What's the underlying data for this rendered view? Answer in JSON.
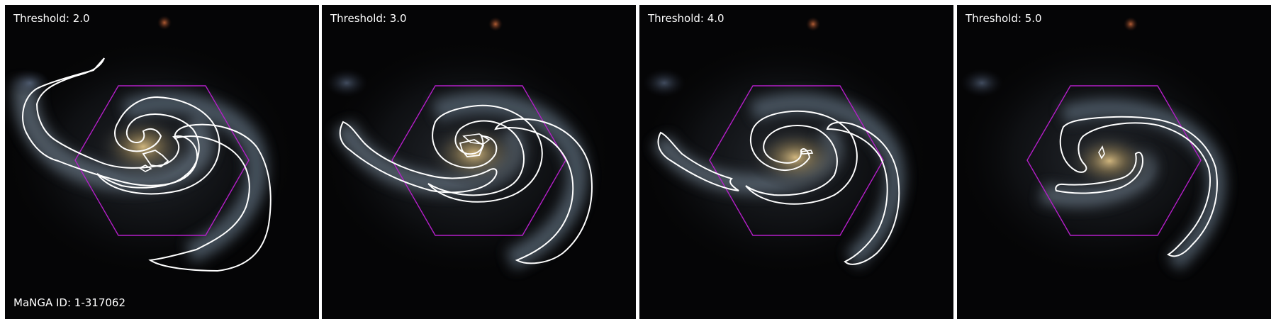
{
  "panels": [
    {
      "name": "panel-1",
      "threshold_label": "Threshold: 2.0",
      "threshold": 2.0
    },
    {
      "name": "panel-2",
      "threshold_label": "Threshold: 3.0",
      "threshold": 3.0
    },
    {
      "name": "panel-3",
      "threshold_label": "Threshold: 4.0",
      "threshold": 4.0
    },
    {
      "name": "panel-4",
      "threshold_label": "Threshold: 5.0",
      "threshold": 5.0
    }
  ],
  "galaxy_id_label": "MaNGA ID: 1-317062",
  "colors": {
    "background": "#050506",
    "contour": "#ffffff",
    "ifu_hexagon": "#b41ec8",
    "galaxy_core": "#cdb27a",
    "galaxy_arms": "#6e7a88",
    "foreground_star": "#b05a30"
  },
  "overlays": {
    "contour_icon": "galaxy-arm-contour",
    "hexagon_icon": "ifu-footprint-hexagon"
  }
}
